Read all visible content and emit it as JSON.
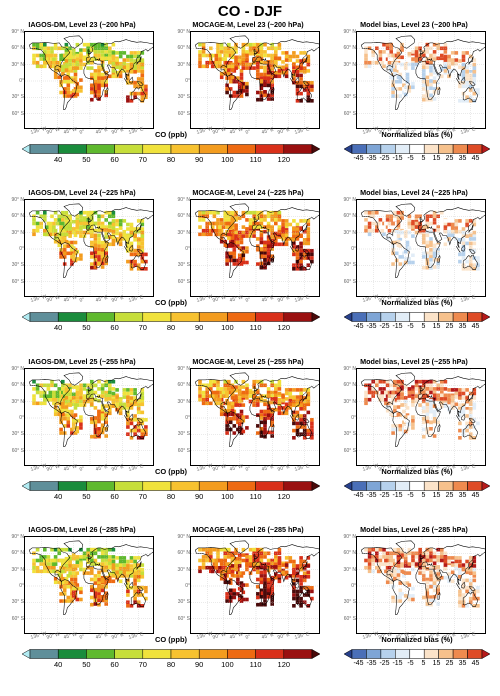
{
  "title": "CO - DJF",
  "axes": {
    "lat_labels": [
      "90° N",
      "60° N",
      "30° N",
      "0°",
      "30° S",
      "60° S"
    ],
    "lon_labels": [
      "135° W",
      "90° W",
      "45° W",
      "0°",
      "45° E",
      "90° E",
      "135° E"
    ]
  },
  "rows": [
    {
      "panels": [
        {
          "title": "IAGOS-DM, Level 23 (~200 hPa)",
          "kind": "co",
          "variant": 0
        },
        {
          "title": "MOCAGE-M, Level 23 (~200 hPa)",
          "kind": "co",
          "variant": 1
        },
        {
          "title": "Model bias, Level 23 (~200 hPa)",
          "kind": "bias",
          "variant": 2
        }
      ],
      "co_bar": {
        "title": "CO (ppb)",
        "ticks": [
          "40",
          "50",
          "60",
          "70",
          "80",
          "90",
          "100",
          "110",
          "120"
        ]
      },
      "bias_bar": {
        "title": "Normalized bias (%)",
        "ticks": [
          "-45",
          "-35",
          "-25",
          "-15",
          "-5",
          "5",
          "15",
          "25",
          "35",
          "45"
        ]
      }
    },
    {
      "panels": [
        {
          "title": "IAGOS-DM, Level 24 (~225 hPa)",
          "kind": "co",
          "variant": 3
        },
        {
          "title": "MOCAGE-M, Level 24 (~225 hPa)",
          "kind": "co",
          "variant": 4
        },
        {
          "title": "Model bias, Level 24 (~225 hPa)",
          "kind": "bias",
          "variant": 5
        }
      ],
      "co_bar": {
        "title": "CO (ppb)",
        "ticks": [
          "40",
          "50",
          "60",
          "70",
          "80",
          "90",
          "100",
          "110",
          "120"
        ]
      },
      "bias_bar": {
        "title": "Normalized bias (%)",
        "ticks": [
          "-45",
          "-35",
          "-25",
          "-15",
          "-5",
          "5",
          "15",
          "25",
          "35",
          "45"
        ]
      }
    },
    {
      "panels": [
        {
          "title": "IAGOS-DM, Level 25 (~255 hPa)",
          "kind": "co",
          "variant": 6
        },
        {
          "title": "MOCAGE-M, Level 25 (~255 hPa)",
          "kind": "co",
          "variant": 7
        },
        {
          "title": "Model bias, Level 25 (~255 hPa)",
          "kind": "bias",
          "variant": 8
        }
      ],
      "co_bar": {
        "title": "CO (ppb)",
        "ticks": [
          "40",
          "50",
          "60",
          "70",
          "80",
          "90",
          "100",
          "110",
          "120"
        ]
      },
      "bias_bar": {
        "title": "Normalized bias (%)",
        "ticks": [
          "-45",
          "-35",
          "-25",
          "-15",
          "-5",
          "5",
          "15",
          "25",
          "35",
          "45"
        ]
      }
    },
    {
      "panels": [
        {
          "title": "IAGOS-DM, Level 26 (~285 hPa)",
          "kind": "co",
          "variant": 9
        },
        {
          "title": "MOCAGE-M, Level 26 (~285 hPa)",
          "kind": "co",
          "variant": 10
        },
        {
          "title": "Model bias, Level 26 (~285 hPa)",
          "kind": "bias",
          "variant": 11
        }
      ],
      "co_bar": {
        "title": "CO (ppb)",
        "ticks": [
          "40",
          "50",
          "60",
          "70",
          "80",
          "90",
          "100",
          "110",
          "120"
        ]
      },
      "bias_bar": {
        "title": "Normalized bias (%)",
        "ticks": [
          "-45",
          "-35",
          "-25",
          "-15",
          "-5",
          "5",
          "15",
          "25",
          "35",
          "45"
        ]
      }
    }
  ],
  "colors": {
    "co_scale": [
      "#b2ebf2",
      "#5f8f9a",
      "#1a8c3c",
      "#5fb92e",
      "#c6de3a",
      "#f0e23c",
      "#f7c230",
      "#f39c1f",
      "#ee6a12",
      "#d9301a",
      "#9a1010",
      "#4a0a0a"
    ],
    "bias_scale": [
      "#27408b",
      "#4a6fb8",
      "#7ea5d6",
      "#b6d1ec",
      "#e2edf7",
      "#ffffff",
      "#fbe3c9",
      "#f6c18c",
      "#ee8a4e",
      "#de4b26",
      "#b51a1a"
    ]
  }
}
